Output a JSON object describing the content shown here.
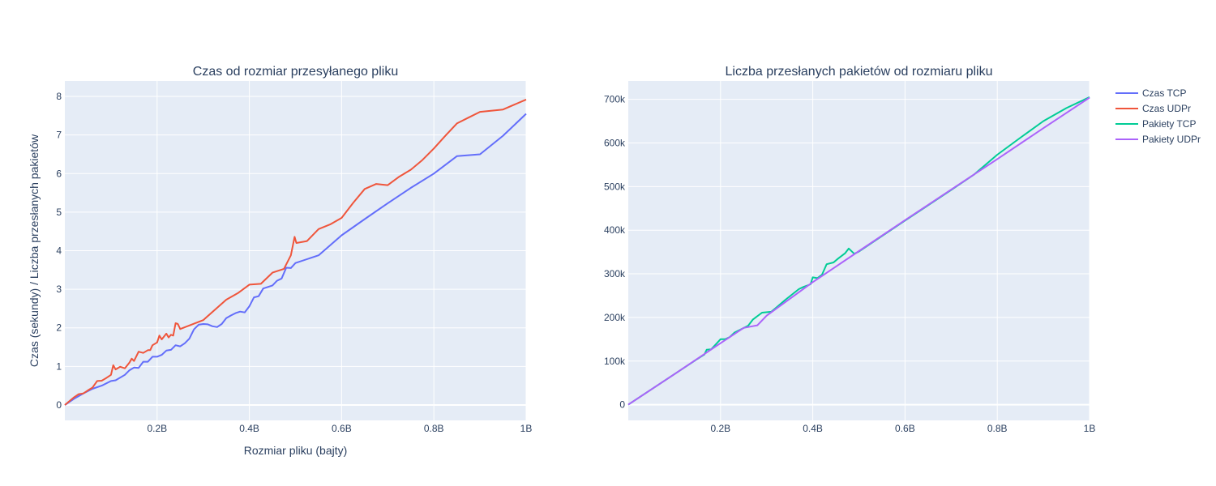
{
  "colors": {
    "plot_bg": "#e5ecf6",
    "grid": "#ffffff",
    "text": "#2a3f5f",
    "czas_tcp": "#636efa",
    "czas_udpr": "#ef553b",
    "pakiety_tcp": "#00cc96",
    "pakiety_udpr": "#ab63fa"
  },
  "legend": {
    "placement": "top-right",
    "items": [
      "Czas TCP",
      "Czas UDPr",
      "Pakiety TCP",
      "Pakiety UDPr"
    ]
  },
  "chart_data": [
    {
      "type": "line",
      "title": "Czas od rozmiar przesyłanego pliku",
      "xlabel": "Rozmiar pliku (bajty)",
      "ylabel": "Czas (sekundy) / Liczba przesłanych pakietów",
      "xlim": [
        0,
        1000000000
      ],
      "ylim": [
        -0.4,
        8.4
      ],
      "grid": true,
      "x_ticks": [
        {
          "value": 200000000,
          "label": "0.2B"
        },
        {
          "value": 400000000,
          "label": "0.4B"
        },
        {
          "value": 600000000,
          "label": "0.6B"
        },
        {
          "value": 800000000,
          "label": "0.8B"
        },
        {
          "value": 1000000000,
          "label": "1B"
        }
      ],
      "y_ticks": [
        {
          "value": 0,
          "label": "0"
        },
        {
          "value": 1,
          "label": "1"
        },
        {
          "value": 2,
          "label": "2"
        },
        {
          "value": 3,
          "label": "3"
        },
        {
          "value": 4,
          "label": "4"
        },
        {
          "value": 5,
          "label": "5"
        },
        {
          "value": 6,
          "label": "6"
        },
        {
          "value": 7,
          "label": "7"
        },
        {
          "value": 8,
          "label": "8"
        }
      ],
      "series": [
        {
          "name": "Czas TCP",
          "color": "#636efa",
          "x": [
            0,
            20000000,
            40000000,
            60000000,
            80000000,
            100000000,
            110000000,
            130000000,
            140000000,
            150000000,
            160000000,
            170000000,
            180000000,
            190000000,
            200000000,
            210000000,
            220000000,
            230000000,
            240000000,
            250000000,
            260000000,
            270000000,
            280000000,
            290000000,
            300000000,
            310000000,
            320000000,
            330000000,
            340000000,
            350000000,
            360000000,
            370000000,
            380000000,
            390000000,
            400000000,
            410000000,
            420000000,
            430000000,
            440000000,
            450000000,
            460000000,
            470000000,
            480000000,
            490000000,
            500000000,
            550000000,
            600000000,
            650000000,
            700000000,
            750000000,
            800000000,
            850000000,
            900000000,
            950000000,
            1000000000
          ],
          "y": [
            0,
            0.16,
            0.3,
            0.42,
            0.5,
            0.62,
            0.64,
            0.78,
            0.9,
            0.97,
            0.96,
            1.12,
            1.12,
            1.25,
            1.25,
            1.3,
            1.41,
            1.43,
            1.55,
            1.52,
            1.6,
            1.72,
            1.96,
            2.08,
            2.1,
            2.09,
            2.04,
            2.02,
            2.1,
            2.25,
            2.32,
            2.38,
            2.42,
            2.4,
            2.56,
            2.79,
            2.82,
            3.02,
            3.06,
            3.1,
            3.22,
            3.28,
            3.56,
            3.55,
            3.68,
            3.88,
            4.4,
            4.82,
            5.23,
            5.63,
            6.0,
            6.45,
            6.5,
            6.98,
            7.55
          ]
        },
        {
          "name": "Czas UDPr",
          "color": "#ef553b",
          "x": [
            0,
            20000000,
            30000000,
            40000000,
            50000000,
            60000000,
            70000000,
            80000000,
            90000000,
            100000000,
            105000000,
            110000000,
            120000000,
            130000000,
            140000000,
            145000000,
            150000000,
            160000000,
            170000000,
            180000000,
            185000000,
            190000000,
            200000000,
            205000000,
            210000000,
            220000000,
            225000000,
            230000000,
            235000000,
            240000000,
            245000000,
            250000000,
            300000000,
            350000000,
            375000000,
            400000000,
            425000000,
            450000000,
            475000000,
            490000000,
            498000000,
            502000000,
            525000000,
            550000000,
            575000000,
            600000000,
            625000000,
            650000000,
            675000000,
            700000000,
            725000000,
            750000000,
            775000000,
            800000000,
            825000000,
            850000000,
            875000000,
            900000000,
            950000000,
            1000000000
          ],
          "y": [
            0,
            0.2,
            0.28,
            0.3,
            0.38,
            0.45,
            0.62,
            0.63,
            0.7,
            0.78,
            1.03,
            0.92,
            0.99,
            0.95,
            1.1,
            1.2,
            1.14,
            1.38,
            1.35,
            1.42,
            1.42,
            1.55,
            1.62,
            1.8,
            1.7,
            1.85,
            1.75,
            1.82,
            1.8,
            2.12,
            2.1,
            1.97,
            2.2,
            2.73,
            2.9,
            3.12,
            3.14,
            3.43,
            3.53,
            3.88,
            4.36,
            4.2,
            4.25,
            4.56,
            4.68,
            4.85,
            5.24,
            5.6,
            5.73,
            5.7,
            5.92,
            6.1,
            6.35,
            6.65,
            6.98,
            7.3,
            7.45,
            7.6,
            7.66,
            7.92
          ]
        }
      ]
    },
    {
      "type": "line",
      "title": "Liczba przesłanych pakietów od rozmiaru pliku",
      "xlim": [
        0,
        1000000000
      ],
      "ylim": [
        -36000,
        742000
      ],
      "grid": true,
      "x_ticks": [
        {
          "value": 200000000,
          "label": "0.2B"
        },
        {
          "value": 400000000,
          "label": "0.4B"
        },
        {
          "value": 600000000,
          "label": "0.6B"
        },
        {
          "value": 800000000,
          "label": "0.8B"
        },
        {
          "value": 1000000000,
          "label": "1B"
        }
      ],
      "y_ticks": [
        {
          "value": 0,
          "label": "0"
        },
        {
          "value": 100000,
          "label": "100k"
        },
        {
          "value": 200000,
          "label": "200k"
        },
        {
          "value": 300000,
          "label": "300k"
        },
        {
          "value": 400000,
          "label": "400k"
        },
        {
          "value": 500000,
          "label": "500k"
        },
        {
          "value": 600000,
          "label": "600k"
        },
        {
          "value": 700000,
          "label": "700k"
        }
      ],
      "series": [
        {
          "name": "Pakiety TCP",
          "color": "#00cc96",
          "x": [
            0,
            100000000,
            150000000,
            165000000,
            170000000,
            180000000,
            200000000,
            210000000,
            220000000,
            230000000,
            260000000,
            270000000,
            290000000,
            310000000,
            320000000,
            340000000,
            370000000,
            380000000,
            395000000,
            400000000,
            410000000,
            420000000,
            430000000,
            445000000,
            455000000,
            470000000,
            478000000,
            490000000,
            500000000,
            600000000,
            700000000,
            750000000,
            800000000,
            850000000,
            900000000,
            950000000,
            1000000000
          ],
          "y": [
            0,
            70000,
            105000,
            115000,
            126000,
            127000,
            150000,
            150000,
            155000,
            165000,
            181000,
            195000,
            211000,
            213000,
            222000,
            240000,
            265000,
            270000,
            276000,
            292000,
            290000,
            298000,
            322000,
            326000,
            335000,
            347000,
            358000,
            346000,
            351000,
            422000,
            492000,
            528000,
            573000,
            612000,
            650000,
            680000,
            705000
          ]
        },
        {
          "name": "Pakiety UDPr",
          "color": "#ab63fa",
          "x": [
            0,
            100000000,
            200000000,
            250000000,
            270000000,
            280000000,
            300000000,
            400000000,
            500000000,
            600000000,
            700000000,
            800000000,
            900000000,
            1000000000
          ],
          "y": [
            0,
            70000,
            141000,
            176000,
            180000,
            182000,
            204000,
            281000,
            352000,
            423000,
            493000,
            563000,
            634000,
            704000
          ]
        }
      ]
    }
  ]
}
